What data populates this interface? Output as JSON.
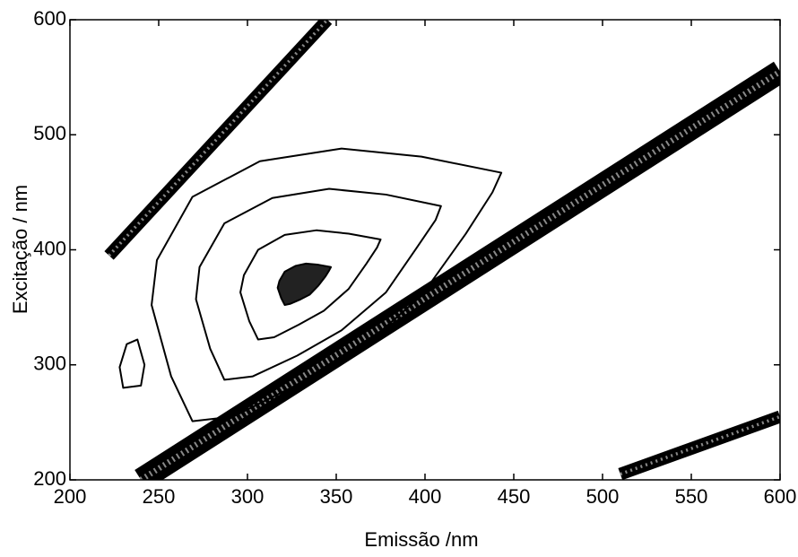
{
  "chart_data": {
    "type": "contour",
    "x_label": "Emissão /nm",
    "y_label": "Excitação / nm",
    "xlim": [
      200,
      600
    ],
    "ylim": [
      200,
      600
    ],
    "xticks": [
      200,
      250,
      300,
      350,
      400,
      450,
      500,
      550,
      600
    ],
    "yticks": [
      200,
      300,
      400,
      500,
      600
    ],
    "color": "#000000",
    "contours": [
      {
        "x": [
          269,
          257,
          246,
          249,
          269,
          307,
          353,
          398,
          443,
          438,
          423,
          398,
          363,
          327,
          292
        ],
        "y": [
          251,
          290,
          352,
          391,
          446,
          477,
          488,
          481,
          467,
          450,
          414,
          360,
          313,
          282,
          255
        ]
      },
      {
        "x": [
          287,
          279,
          271,
          273,
          287,
          314,
          346,
          378,
          409,
          406,
          395,
          378,
          353,
          328,
          303
        ],
        "y": [
          287,
          314,
          357,
          385,
          423,
          445,
          453,
          448,
          438,
          426,
          401,
          363,
          330,
          308,
          290
        ]
      },
      {
        "x": [
          306,
          301,
          296,
          298,
          306,
          321,
          339,
          357,
          375,
          373,
          367,
          357,
          343,
          329,
          315
        ],
        "y": [
          322,
          338,
          363,
          378,
          400,
          413,
          417,
          414,
          409,
          402,
          388,
          366,
          347,
          335,
          324
        ]
      },
      {
        "x": [
          321,
          319,
          317,
          318,
          321,
          327,
          333,
          340,
          347,
          346,
          344,
          340,
          335,
          330,
          324
        ],
        "y": [
          352,
          358,
          367,
          373,
          381,
          386,
          388,
          387,
          385,
          382,
          377,
          369,
          361,
          357,
          353
        ]
      },
      {
        "x": [
          230,
          240,
          242,
          238,
          232,
          228
        ],
        "y": [
          280,
          282,
          300,
          322,
          318,
          298
        ]
      }
    ],
    "bands": [
      {
        "x": [
          240,
          600
        ],
        "y": [
          200,
          555
        ]
      },
      {
        "x": [
          222,
          345
        ],
        "y": [
          395,
          600
        ]
      },
      {
        "x": [
          510,
          600
        ],
        "y": [
          205,
          255
        ]
      }
    ]
  }
}
